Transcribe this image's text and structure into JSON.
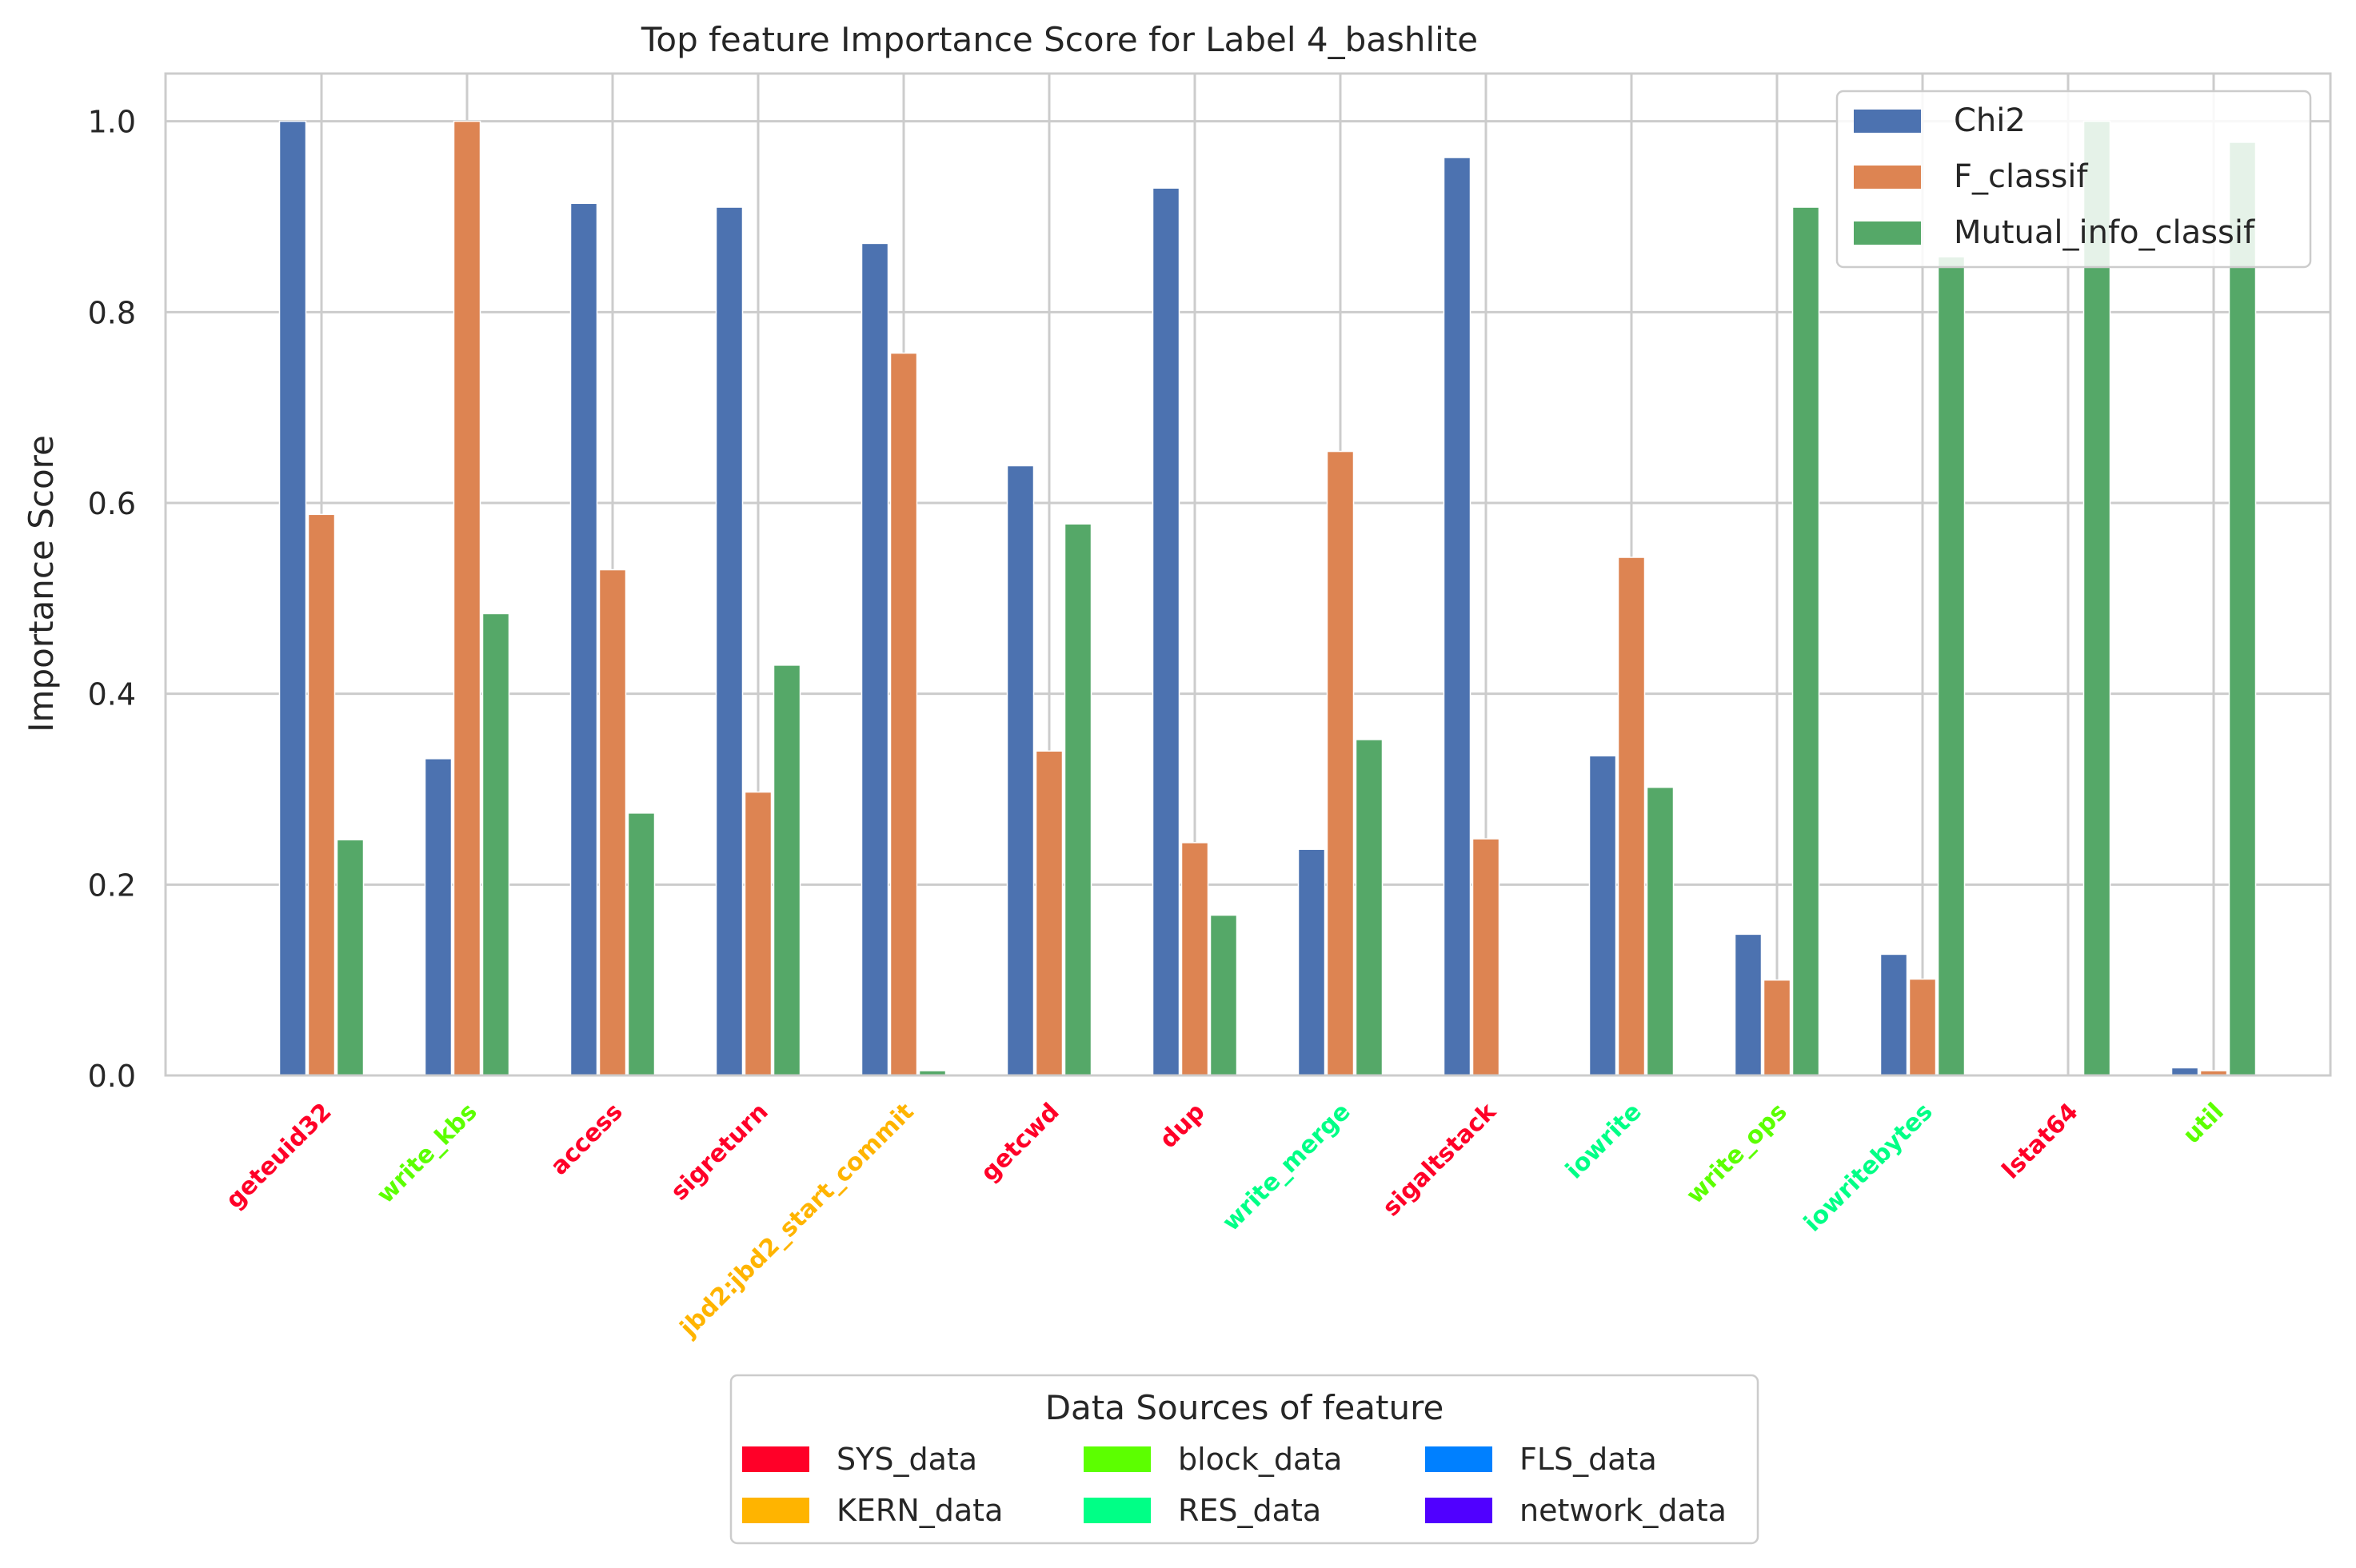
{
  "chart_data": {
    "type": "bar",
    "title": "Top feature Importance Score for Label 4_bashlite",
    "xlabel": "",
    "ylabel": "Importance Score",
    "ylim": [
      0,
      1.05
    ],
    "yticks": [
      "0.0",
      "0.2",
      "0.4",
      "0.6",
      "0.8",
      "1.0"
    ],
    "grid": true,
    "legend_position": "top-right",
    "categories": [
      "geteuid32",
      "write_kbs",
      "access",
      "sigreturn",
      "jbd2:jbd2_start_commit",
      "getcwd",
      "dup",
      "write_merge",
      "sigaltstack",
      "iowrite",
      "write_ops",
      "iowritebytes",
      "lstat64",
      "util"
    ],
    "category_sources": [
      "SYS_data",
      "block_data",
      "SYS_data",
      "SYS_data",
      "KERN_data",
      "SYS_data",
      "SYS_data",
      "RES_data",
      "SYS_data",
      "RES_data",
      "block_data",
      "RES_data",
      "SYS_data",
      "block_data"
    ],
    "series": [
      {
        "name": "Chi2",
        "color": "#4c72b0",
        "values": [
          1.0,
          0.332,
          0.914,
          0.91,
          0.872,
          0.639,
          0.93,
          0.237,
          0.962,
          0.335,
          0.148,
          0.127,
          0.0,
          0.008
        ]
      },
      {
        "name": "F_classif",
        "color": "#dd8452",
        "values": [
          0.588,
          1.0,
          0.53,
          0.297,
          0.757,
          0.34,
          0.244,
          0.654,
          0.248,
          0.543,
          0.1,
          0.101,
          0.0,
          0.005
        ]
      },
      {
        "name": "Mutual_info_classif",
        "color": "#55a868",
        "values": [
          0.247,
          0.484,
          0.275,
          0.43,
          0.005,
          0.578,
          0.168,
          0.352,
          0.0,
          0.302,
          0.91,
          0.858,
          1.0,
          0.978
        ]
      }
    ],
    "source_legend": {
      "title": "Data Sources of feature",
      "items": [
        {
          "name": "SYS_data",
          "color": "#ff0028"
        },
        {
          "name": "KERN_data",
          "color": "#ffb400"
        },
        {
          "name": "block_data",
          "color": "#5cff00"
        },
        {
          "name": "RES_data",
          "color": "#00ff86"
        },
        {
          "name": "FLS_data",
          "color": "#0080ff"
        },
        {
          "name": "network_data",
          "color": "#5000ff"
        }
      ]
    }
  }
}
